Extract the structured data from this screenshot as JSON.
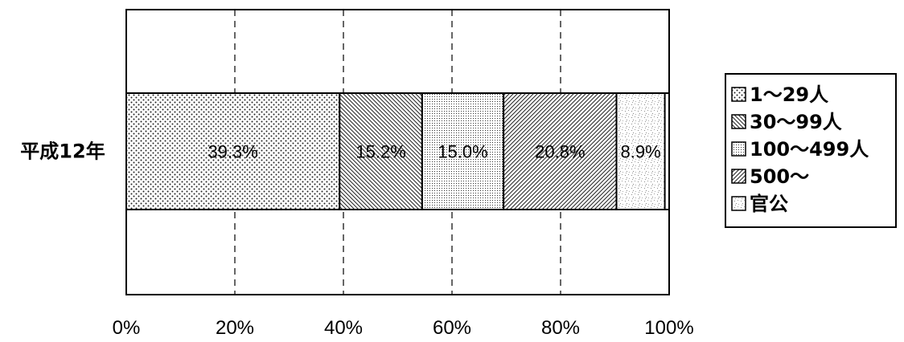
{
  "chart_data": {
    "type": "bar",
    "orientation": "horizontal",
    "stacked": "100%",
    "categories": [
      "平成12年"
    ],
    "series": [
      {
        "name": "1～29人",
        "values": [
          39.3
        ],
        "label": "39.3%",
        "pattern": "dots-sparse"
      },
      {
        "name": "30～99人",
        "values": [
          15.2
        ],
        "label": "15.2%",
        "pattern": "hatch-back"
      },
      {
        "name": "100～499人",
        "values": [
          15.0
        ],
        "label": "15.0%",
        "pattern": "dots-dense"
      },
      {
        "name": "500～",
        "values": [
          20.8
        ],
        "label": "20.8%",
        "pattern": "hatch-forward"
      },
      {
        "name": "官公",
        "values": [
          8.9
        ],
        "label": "8.9%",
        "pattern": "speckle"
      }
    ],
    "xlim": [
      0,
      100
    ],
    "x_ticks": [
      "0%",
      "20%",
      "40%",
      "60%",
      "80%",
      "100%"
    ],
    "gridlines": "dashed vertical",
    "legend_position": "right"
  }
}
